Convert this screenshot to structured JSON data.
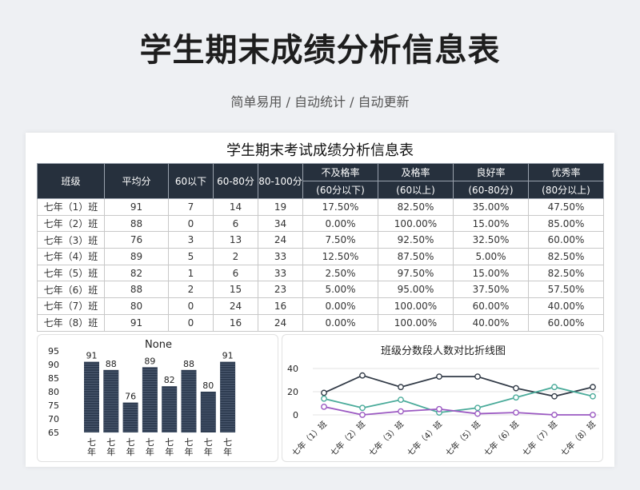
{
  "page": {
    "title": "学生期末成绩分析信息表",
    "subtitle": "简单易用 / 自动统计 / 自动更新"
  },
  "sheet": {
    "title": "学生期末考试成绩分析信息表",
    "headers": {
      "class": "班级",
      "avg": "平均分",
      "below60": "60以下",
      "r6080": "60-80分",
      "r80100": "80-100分",
      "fail_rate": "不及格率",
      "fail_sub": "(60分以下)",
      "pass_rate": "及格率",
      "pass_sub": "(60以上)",
      "good_rate": "良好率",
      "good_sub": "(60-80分)",
      "excellent_rate": "优秀率",
      "excellent_sub": "(80分以上)"
    },
    "rows": [
      {
        "class": "七年（1）班",
        "avg": "91",
        "below60": "7",
        "r6080": "14",
        "r80100": "19",
        "fail": "17.50%",
        "pass": "82.50%",
        "good": "35.00%",
        "excellent": "47.50%"
      },
      {
        "class": "七年（2）班",
        "avg": "88",
        "below60": "0",
        "r6080": "6",
        "r80100": "34",
        "fail": "0.00%",
        "pass": "100.00%",
        "good": "15.00%",
        "excellent": "85.00%"
      },
      {
        "class": "七年（3）班",
        "avg": "76",
        "below60": "3",
        "r6080": "13",
        "r80100": "24",
        "fail": "7.50%",
        "pass": "92.50%",
        "good": "32.50%",
        "excellent": "60.00%"
      },
      {
        "class": "七年（4）班",
        "avg": "89",
        "below60": "5",
        "r6080": "2",
        "r80100": "33",
        "fail": "12.50%",
        "pass": "87.50%",
        "good": "5.00%",
        "excellent": "82.50%"
      },
      {
        "class": "七年（5）班",
        "avg": "82",
        "below60": "1",
        "r6080": "6",
        "r80100": "33",
        "fail": "2.50%",
        "pass": "97.50%",
        "good": "15.00%",
        "excellent": "82.50%"
      },
      {
        "class": "七年（6）班",
        "avg": "88",
        "below60": "2",
        "r6080": "15",
        "r80100": "23",
        "fail": "5.00%",
        "pass": "95.00%",
        "good": "37.50%",
        "excellent": "57.50%"
      },
      {
        "class": "七年（7）班",
        "avg": "80",
        "below60": "0",
        "r6080": "24",
        "r80100": "16",
        "fail": "0.00%",
        "pass": "100.00%",
        "good": "60.00%",
        "excellent": "40.00%"
      },
      {
        "class": "七年（8）班",
        "avg": "91",
        "below60": "0",
        "r6080": "16",
        "r80100": "24",
        "fail": "0.00%",
        "pass": "100.00%",
        "good": "40.00%",
        "excellent": "60.00%"
      }
    ]
  },
  "chart_data": [
    {
      "type": "bar",
      "title": "None",
      "categories": [
        "七年",
        "七年",
        "七年",
        "七年",
        "七年",
        "七年",
        "七年",
        "七年"
      ],
      "values": [
        91,
        88,
        76,
        89,
        82,
        88,
        80,
        91
      ],
      "ylim": [
        65,
        95
      ],
      "yticks": [
        95,
        90,
        85,
        80,
        75,
        70,
        65
      ],
      "bar_color": "#2f3d52",
      "grid": false
    },
    {
      "type": "line",
      "title": "班级分数段人数对比折线图",
      "categories": [
        "七年（1）班",
        "七年（2）班",
        "七年（3）班",
        "七年（4）班",
        "七年（5）班",
        "七年（6）班",
        "七年（7）班",
        "七年（8）班"
      ],
      "ylim": [
        0,
        40
      ],
      "yticks": [
        40,
        20,
        0
      ],
      "grid": true,
      "series": [
        {
          "values": [
            19,
            34,
            24,
            33,
            33,
            23,
            16,
            24
          ],
          "color": "#333c48"
        },
        {
          "values": [
            14,
            6,
            13,
            2,
            6,
            15,
            24,
            16
          ],
          "color": "#4aab9a"
        },
        {
          "values": [
            7,
            0,
            3,
            5,
            1,
            2,
            0,
            0
          ],
          "color": "#9b59c2"
        }
      ]
    }
  ]
}
